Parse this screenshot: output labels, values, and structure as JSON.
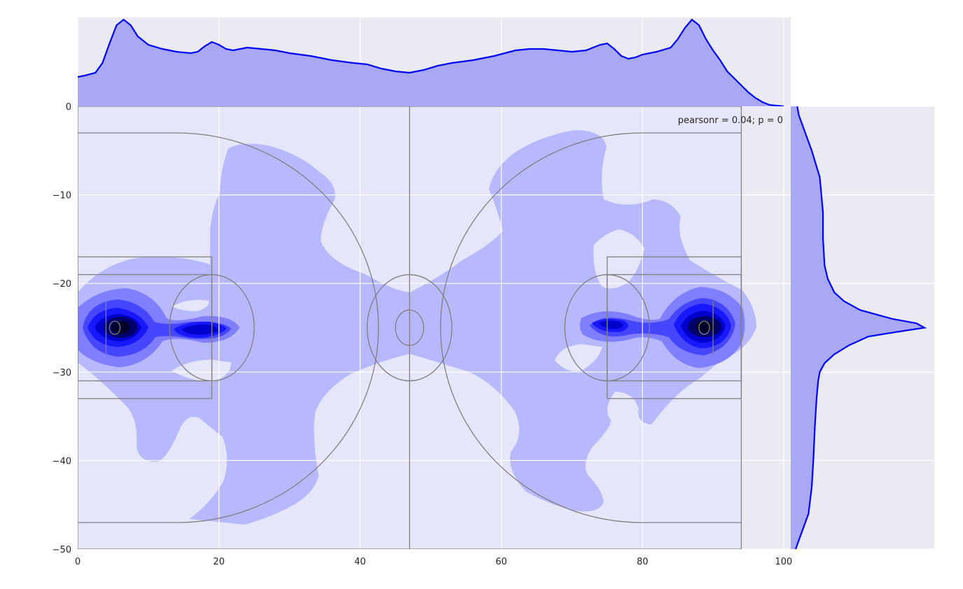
{
  "chart_data": {
    "type": "joint_kde",
    "title": "",
    "xlabel": "",
    "ylabel": "",
    "xlim": [
      0,
      101
    ],
    "ylim": [
      -50,
      0
    ],
    "xticks": [
      "0",
      "20",
      "40",
      "60",
      "80",
      "100"
    ],
    "yticks": [
      "0",
      "−10",
      "−20",
      "−30",
      "−40",
      "−50"
    ],
    "annotation": "pearsonr = 0.04; p = 0",
    "grid": true,
    "colors": {
      "axes_bg": "#eaeaf2",
      "grid": "#ffffff",
      "kde_level0": "#e6e6fa",
      "kde_level1": "#b8b8ff",
      "kde_level2": "#7f7fff",
      "kde_level3": "#4646ff",
      "kde_level4": "#1818ff",
      "kde_level5": "#0000cc",
      "kde_level6": "#00006a",
      "kde_level7": "#000028",
      "marginal_fill": "#a8a8f5",
      "marginal_line": "#0000ff",
      "pitch_lines": "#808080"
    },
    "marginal_x": {
      "x": [
        0,
        1,
        2.5,
        3.5,
        4.5,
        5.5,
        6.5,
        7.5,
        8.5,
        10,
        12,
        14,
        16,
        17,
        18,
        19,
        20,
        21,
        22,
        24,
        26,
        28,
        30,
        33,
        36,
        39,
        41,
        43,
        45,
        47,
        49,
        51,
        53,
        56,
        59,
        62,
        64,
        66,
        68,
        70,
        72,
        73,
        74,
        75,
        76,
        77,
        78,
        79,
        80,
        82,
        84,
        85,
        86,
        87,
        88,
        89,
        90,
        91,
        92,
        93,
        94,
        95,
        96,
        97,
        98,
        99,
        100
      ],
      "density": [
        0.021,
        0.022,
        0.024,
        0.031,
        0.045,
        0.058,
        0.062,
        0.058,
        0.05,
        0.044,
        0.041,
        0.039,
        0.038,
        0.039,
        0.043,
        0.046,
        0.044,
        0.041,
        0.04,
        0.042,
        0.041,
        0.04,
        0.038,
        0.036,
        0.033,
        0.031,
        0.03,
        0.027,
        0.025,
        0.024,
        0.026,
        0.029,
        0.031,
        0.033,
        0.036,
        0.04,
        0.041,
        0.041,
        0.04,
        0.039,
        0.04,
        0.042,
        0.044,
        0.045,
        0.041,
        0.036,
        0.034,
        0.035,
        0.037,
        0.039,
        0.042,
        0.048,
        0.056,
        0.062,
        0.058,
        0.048,
        0.04,
        0.033,
        0.025,
        0.02,
        0.015,
        0.01,
        0.006,
        0.003,
        0.001,
        0.0005,
        0.0
      ]
    },
    "marginal_y": {
      "y": [
        0,
        -1,
        -2,
        -3,
        -5,
        -8,
        -12,
        -15,
        -18,
        -19.5,
        -21,
        -22,
        -23,
        -24,
        -24.5,
        -25,
        -25.5,
        -26,
        -27,
        -28,
        -29,
        -30,
        -31,
        -33,
        -36,
        -40,
        -43,
        -46,
        -47.5,
        -48.5,
        -49.5,
        -50
      ],
      "density": [
        0.001,
        0.002,
        0.004,
        0.006,
        0.01,
        0.015,
        0.017,
        0.017,
        0.018,
        0.02,
        0.024,
        0.03,
        0.04,
        0.06,
        0.075,
        0.08,
        0.062,
        0.045,
        0.033,
        0.024,
        0.018,
        0.015,
        0.014,
        0.013,
        0.012,
        0.011,
        0.01,
        0.008,
        0.005,
        0.003,
        0.001,
        0.0
      ]
    },
    "joint_kde": {
      "levels": [
        {
          "level": 1,
          "blobs": [
            {
              "cx": 23,
              "cy": -4.4
            },
            {
              "cx": 11,
              "cy": -16.8
            },
            {
              "cx": 8.5,
              "cy": -40.5
            },
            {
              "cx": 35,
              "cy": -18.5
            },
            {
              "cx": 47,
              "cy": -25
            },
            {
              "cx": 60,
              "cy": -18.5
            },
            {
              "cx": 75,
              "cy": -2.8
            },
            {
              "cx": 82,
              "cy": -10.5
            },
            {
              "cx": 85,
              "cy": -36
            },
            {
              "cx": 24,
              "cy": -47.2
            },
            {
              "cx": 72,
              "cy": -46
            }
          ]
        },
        {
          "level": 2,
          "blobs": [
            {
              "cx": 6,
              "cy": -25
            },
            {
              "cx": 18,
              "cy": -25
            },
            {
              "cx": 76,
              "cy": -25
            },
            {
              "cx": 88,
              "cy": -25
            }
          ]
        },
        {
          "level": 6,
          "blobs": [
            {
              "cx": 5.5,
              "cy": -25
            },
            {
              "cx": 88.5,
              "cy": -25
            }
          ]
        }
      ]
    }
  }
}
